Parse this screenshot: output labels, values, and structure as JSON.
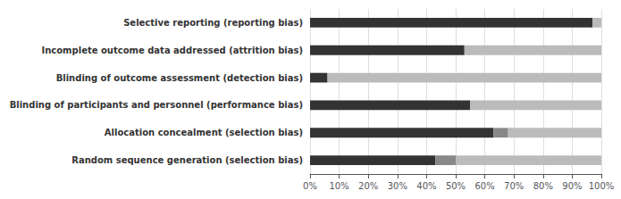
{
  "chart_data": {
    "type": "bar",
    "orientation": "horizontal",
    "stacked": true,
    "grid": true,
    "categories": [
      "Random sequence generation (selection bias)",
      "Allocation concealment (selection bias)",
      "Blinding of participants and personnel (performance bias)",
      "Blinding of outcome assessment (detection bias)",
      "Incomplete outcome data addressed (attrition bias)",
      "Selective reporting (reporting bias)"
    ],
    "series": [
      {
        "color": "#333333",
        "values": [
          43,
          63,
          55,
          6,
          53,
          97
        ]
      },
      {
        "color": "#888888",
        "values": [
          7,
          5,
          0,
          0,
          0,
          0
        ]
      },
      {
        "color": "#bbbbbb",
        "values": [
          50,
          32,
          45,
          94,
          47,
          3
        ]
      }
    ],
    "xlim": [
      0,
      100
    ],
    "xticks": [
      {
        "value": 0,
        "label": "0%"
      },
      {
        "value": 10,
        "label": "10%"
      },
      {
        "value": 20,
        "label": "20%"
      },
      {
        "value": 30,
        "label": "30%"
      },
      {
        "value": 40,
        "label": "40%"
      },
      {
        "value": 50,
        "label": "50%"
      },
      {
        "value": 60,
        "label": "60%"
      },
      {
        "value": 70,
        "label": "70%"
      },
      {
        "value": 80,
        "label": "80%"
      },
      {
        "value": 90,
        "label": "90%"
      },
      {
        "value": 100,
        "label": "100%"
      }
    ]
  }
}
